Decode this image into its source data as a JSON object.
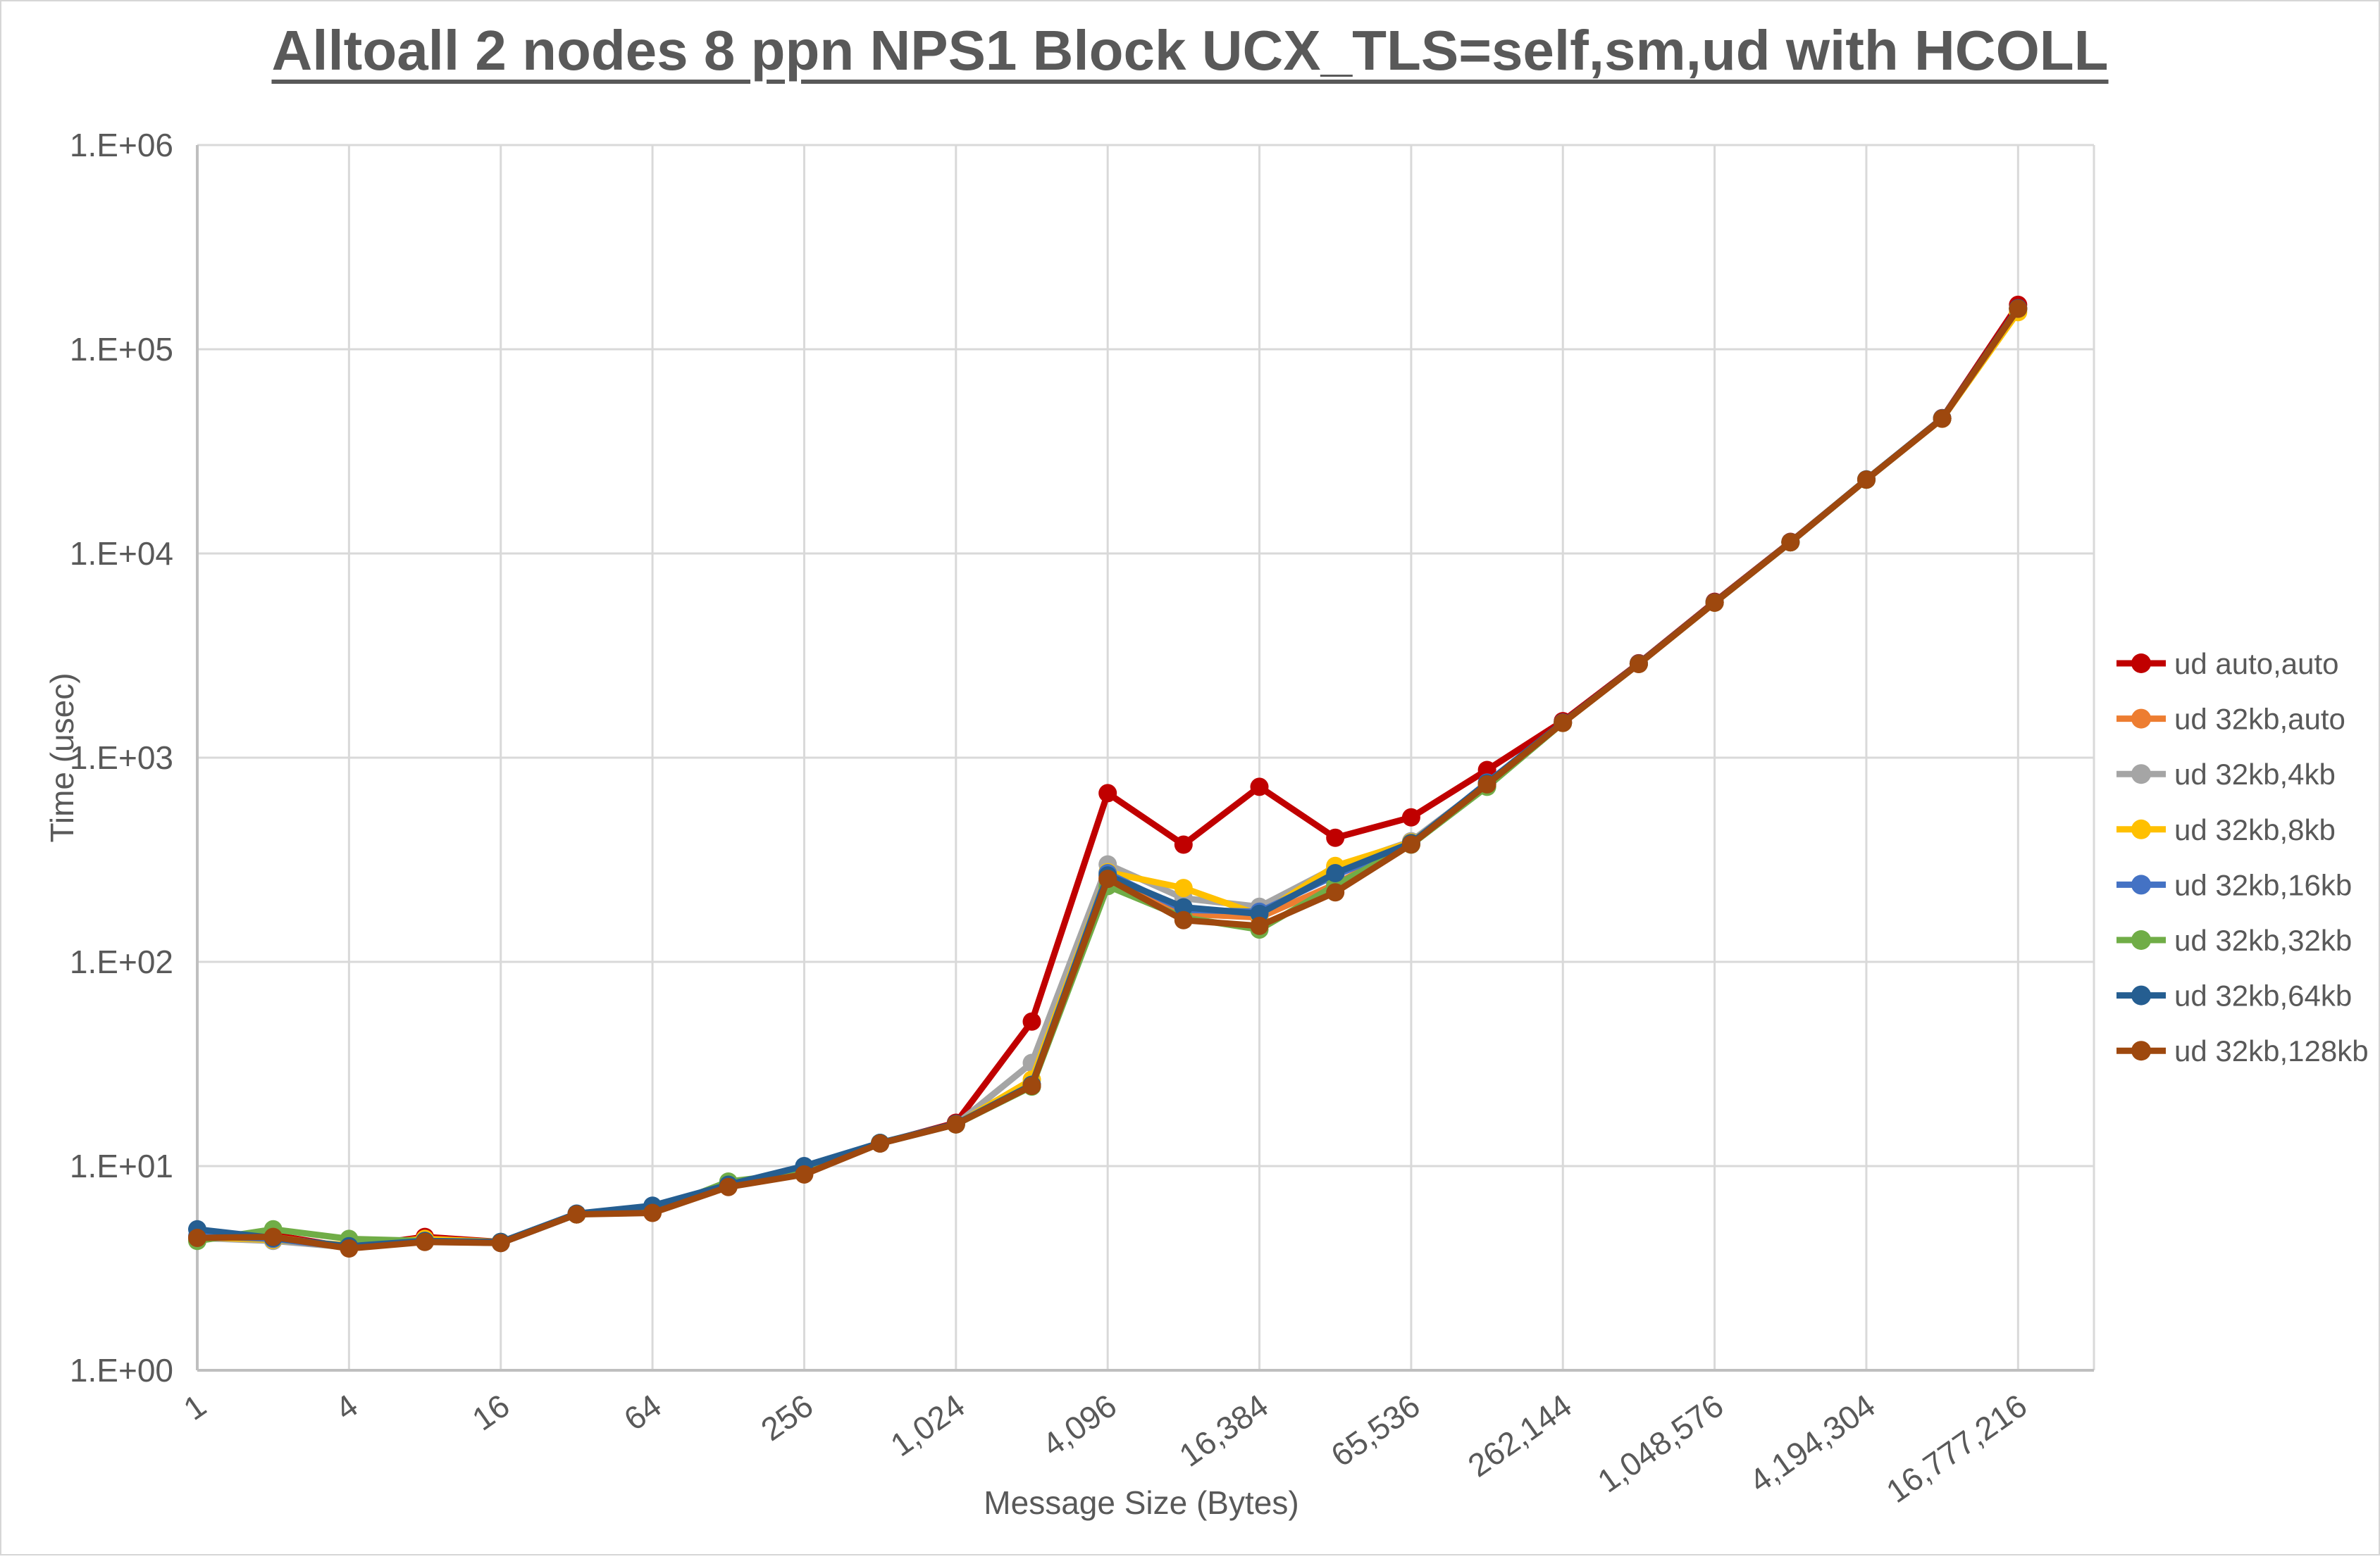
{
  "title": "Alltoall 2 nodes 8 ppn NPS1 Block UCX_TLS=self,sm,ud with HCOLL",
  "x_axis": {
    "label": "Message Size (Bytes)",
    "ticks": [
      "1",
      "4",
      "16",
      "64",
      "256",
      "1,024",
      "4,096",
      "16,384",
      "65,536",
      "262,144",
      "1,048,576",
      "4,194,304",
      "16,777,216"
    ]
  },
  "y_axis": {
    "label": "Time (usec)",
    "ticks": [
      "1.E+06",
      "1.E+05",
      "1.E+04",
      "1.E+03",
      "1.E+02",
      "1.E+01",
      "1.E+00"
    ]
  },
  "legend": {
    "position": "right"
  },
  "colors": {
    "grid": "#D9D9D9",
    "axis": "#BFBFBF",
    "text": "#595959",
    "title": "#595959",
    "background": "#FFFFFF"
  },
  "chart_data": {
    "type": "line",
    "x_scale": "log2",
    "y_scale": "log10",
    "xlim": [
      1,
      33554432
    ],
    "ylim": [
      1,
      1000000
    ],
    "grid": "on",
    "legend_position": "right",
    "x": [
      1,
      2,
      4,
      8,
      16,
      32,
      64,
      128,
      256,
      512,
      1024,
      2048,
      4096,
      8192,
      16384,
      32768,
      65536,
      131072,
      262144,
      524288,
      1048576,
      2097152,
      4194304,
      8388608,
      16777216
    ],
    "series": [
      {
        "name": "ud auto,auto",
        "color": "#C00000",
        "values": [
          4.5,
          4.6,
          4.0,
          4.5,
          4.25,
          5.8,
          6.0,
          8.0,
          9.3,
          12.9,
          16.3,
          51,
          670,
          375,
          720,
          405,
          510,
          870,
          1510,
          2900,
          5800,
          11400,
          23000,
          46000,
          165000
        ]
      },
      {
        "name": "ud 32kb,auto",
        "color": "#ED7D31",
        "values": [
          4.5,
          4.5,
          4.0,
          4.3,
          4.2,
          5.8,
          6.0,
          8.0,
          9.2,
          12.9,
          16.0,
          25,
          258,
          172,
          165,
          240,
          378,
          735,
          1480,
          2880,
          5750,
          11350,
          23000,
          45700,
          157000
        ]
      },
      {
        "name": "ud 32kb,4kb",
        "color": "#A5A5A5",
        "values": [
          4.45,
          4.3,
          4.0,
          4.3,
          4.2,
          5.8,
          6.0,
          8.0,
          9.2,
          12.9,
          16.0,
          32,
          300,
          205,
          186,
          290,
          390,
          745,
          1485,
          2880,
          5750,
          11350,
          23000,
          45800,
          158000
        ]
      },
      {
        "name": "ud 32kb,8kb",
        "color": "#FFC000",
        "values": [
          4.5,
          4.35,
          4.1,
          4.4,
          4.25,
          5.8,
          6.0,
          8.0,
          9.2,
          12.9,
          16.0,
          26.5,
          275,
          230,
          170,
          295,
          385,
          725,
          1480,
          2880,
          5740,
          11350,
          23000,
          45700,
          152000
        ]
      },
      {
        "name": "ud 32kb,16kb",
        "color": "#4472C4",
        "values": [
          4.55,
          4.4,
          4.0,
          4.3,
          4.2,
          5.8,
          6.1,
          8.1,
          9.3,
          12.9,
          16.0,
          25,
          272,
          180,
          176,
          265,
          380,
          755,
          1485,
          2880,
          5750,
          11350,
          23000,
          45800,
          158000
        ]
      },
      {
        "name": "ud 32kb,32kb",
        "color": "#70AD47",
        "values": [
          4.3,
          4.9,
          4.4,
          4.3,
          4.25,
          5.8,
          6.0,
          8.4,
          9.3,
          13.0,
          16.0,
          24.5,
          235,
          165,
          144,
          237,
          375,
          720,
          1480,
          2880,
          5750,
          11350,
          23000,
          45800,
          158000
        ]
      },
      {
        "name": "ud 32kb,64kb",
        "color": "#255E91",
        "values": [
          4.9,
          4.45,
          4.05,
          4.3,
          4.25,
          5.85,
          6.4,
          8.1,
          10.0,
          13.0,
          16.1,
          25,
          265,
          185,
          172,
          272,
          382,
          750,
          1485,
          2885,
          5760,
          11360,
          23050,
          45900,
          159000
        ]
      },
      {
        "name": "ud 32kb,128kb",
        "color": "#9E480E",
        "values": [
          4.45,
          4.5,
          3.95,
          4.25,
          4.2,
          5.8,
          5.9,
          7.9,
          9.1,
          12.9,
          16.0,
          24.7,
          255,
          160,
          150,
          219,
          376,
          740,
          1480,
          2876,
          5740,
          11350,
          23000,
          45700,
          158000
        ]
      }
    ]
  }
}
